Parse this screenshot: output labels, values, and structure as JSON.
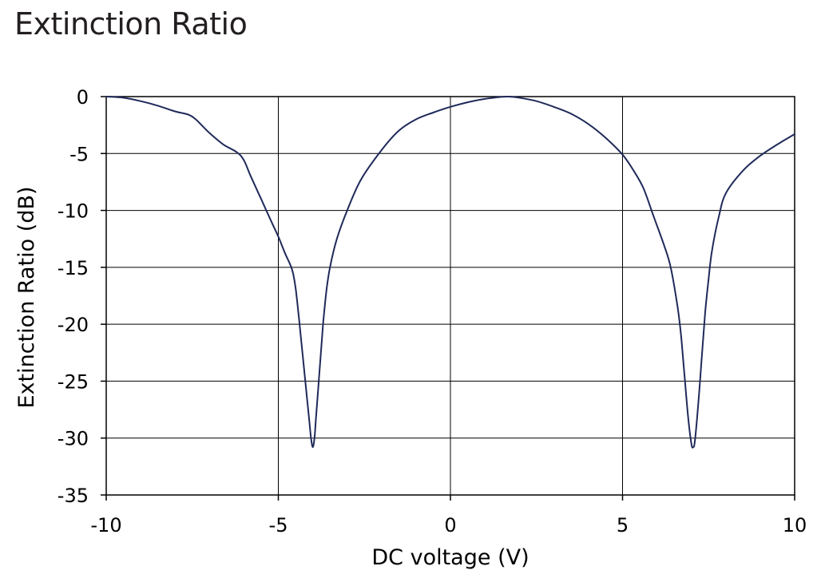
{
  "title": "Extinction Ratio",
  "chart_data": {
    "type": "line",
    "title": "Extinction Ratio",
    "xlabel": "DC voltage (V)",
    "ylabel": "Extinction Ratio (dB)",
    "xlim": [
      -10,
      10
    ],
    "ylim": [
      -35,
      0
    ],
    "xticks": [
      -10,
      -5,
      0,
      5,
      10
    ],
    "yticks": [
      0,
      -5,
      -10,
      -15,
      -20,
      -25,
      -30,
      -35
    ],
    "xtick_labels": [
      "-10",
      "-5",
      "0",
      "5",
      "10"
    ],
    "ytick_labels": [
      "0",
      "-5",
      "-10",
      "-15",
      "-20",
      "-25",
      "-30",
      "-35"
    ],
    "grid": true,
    "line_color": "#1f2a5a",
    "series": [
      {
        "x": [
          -10,
          -9.5,
          -9.0,
          -8.5,
          -8.0,
          -7.6,
          -7.4,
          -7.2,
          -7.0,
          -6.6,
          -6.2,
          -6.0,
          -5.8,
          -5.5,
          -5.2,
          -5.0,
          -4.8,
          -4.6,
          -4.5,
          -4.4,
          -4.3,
          -4.2,
          -4.1,
          -4.05,
          -4.0,
          -3.95,
          -3.9,
          -3.8,
          -3.7,
          -3.6,
          -3.5,
          -3.3,
          -3.0,
          -2.6,
          -2.0,
          -1.5,
          -1.0,
          -0.5,
          0.0,
          0.5,
          1.0,
          1.5,
          1.7,
          2.0,
          2.5,
          3.0,
          3.5,
          4.0,
          4.5,
          5.0,
          5.3,
          5.6,
          5.9,
          6.2,
          6.4,
          6.6,
          6.7,
          6.8,
          6.9,
          7.0,
          7.05,
          7.1,
          7.2,
          7.3,
          7.4,
          7.5,
          7.6,
          7.8,
          8.0,
          8.5,
          9.0,
          9.5,
          10.0
        ],
        "y": [
          0,
          -0.1,
          -0.4,
          -0.8,
          -1.3,
          -1.6,
          -2.0,
          -2.6,
          -3.2,
          -4.2,
          -4.9,
          -5.6,
          -7.0,
          -9.0,
          -11.0,
          -12.3,
          -13.8,
          -15.2,
          -16.8,
          -19.5,
          -22.5,
          -25.5,
          -28.5,
          -30.0,
          -30.8,
          -30.0,
          -28.0,
          -24.0,
          -20.0,
          -17.0,
          -15.0,
          -12.5,
          -10.0,
          -7.3,
          -4.7,
          -3.0,
          -2.0,
          -1.4,
          -0.9,
          -0.5,
          -0.2,
          -0.02,
          0,
          -0.1,
          -0.4,
          -0.9,
          -1.5,
          -2.4,
          -3.6,
          -5.1,
          -6.4,
          -8.0,
          -10.5,
          -13.0,
          -15.0,
          -18.5,
          -21.0,
          -24.5,
          -28.0,
          -30.5,
          -30.8,
          -30.3,
          -27.0,
          -23.0,
          -19.0,
          -16.0,
          -13.5,
          -10.5,
          -8.5,
          -6.5,
          -5.2,
          -4.2,
          -3.3
        ]
      }
    ]
  }
}
